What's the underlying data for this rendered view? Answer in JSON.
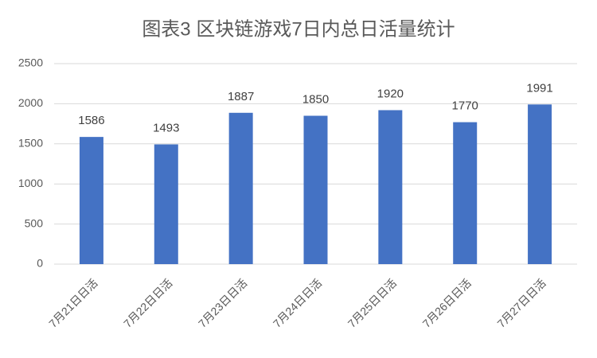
{
  "chart_data": {
    "type": "bar",
    "title": "图表3 区块链游戏7日内总日活量统计",
    "categories": [
      "7月21日日活",
      "7月22日日活",
      "7月23日日活",
      "7月24日日活",
      "7月25日日活",
      "7月26日日活",
      "7月27日日活"
    ],
    "values": [
      1586,
      1493,
      1887,
      1850,
      1920,
      1770,
      1991
    ],
    "color": "#4472c4",
    "ylim": [
      0,
      2500
    ],
    "yticks": [
      0,
      500,
      1000,
      1500,
      2000,
      2500
    ],
    "grid": true
  }
}
